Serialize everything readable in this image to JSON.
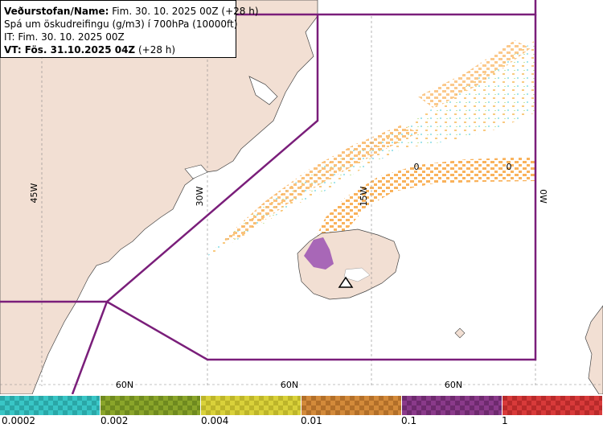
{
  "info": {
    "line1_label": "Veðurstofan/Name:",
    "line1_value": "Fim. 30. 10. 2025 00Z (+28 h)",
    "line2": "Spá um öskudreifingu (g/m3) í 700hPa (10000ft)",
    "line3": "IT: Fim. 30. 10. 2025 00Z",
    "line4_label": "VT: Fös. 31.10.2025 04Z",
    "line4_value": "(+28 h)"
  },
  "map": {
    "lon_labels": [
      "45W",
      "30W",
      "15W",
      "0W"
    ],
    "lat_labels": [
      "60N",
      "60N",
      "60N"
    ],
    "contour_labels": [
      "0",
      "0"
    ],
    "land_color": "#f2dfd3",
    "boundary_color": "#7a1e7a",
    "ash_low_color": "#f9b25b",
    "ash_trace_color": "#9fe3ec",
    "ash_high_color": "#a05ab4",
    "volcano_icon": "volcano-triangle-icon"
  },
  "legend": {
    "swatches": [
      {
        "color": "#39c6c6",
        "alt": "#2aa7a7"
      },
      {
        "color": "#8aa52a",
        "alt": "#6f8a1f"
      },
      {
        "color": "#d9d13a",
        "alt": "#bdb52a"
      },
      {
        "color": "#d38a3a",
        "alt": "#b26f29"
      },
      {
        "color": "#8a3a8a",
        "alt": "#6e2a6e"
      },
      {
        "color": "#d83a3a",
        "alt": "#b82a2a"
      }
    ],
    "labels": [
      "0.0002",
      "0.002",
      "0.004",
      "0.01",
      "0.1",
      "1"
    ]
  }
}
